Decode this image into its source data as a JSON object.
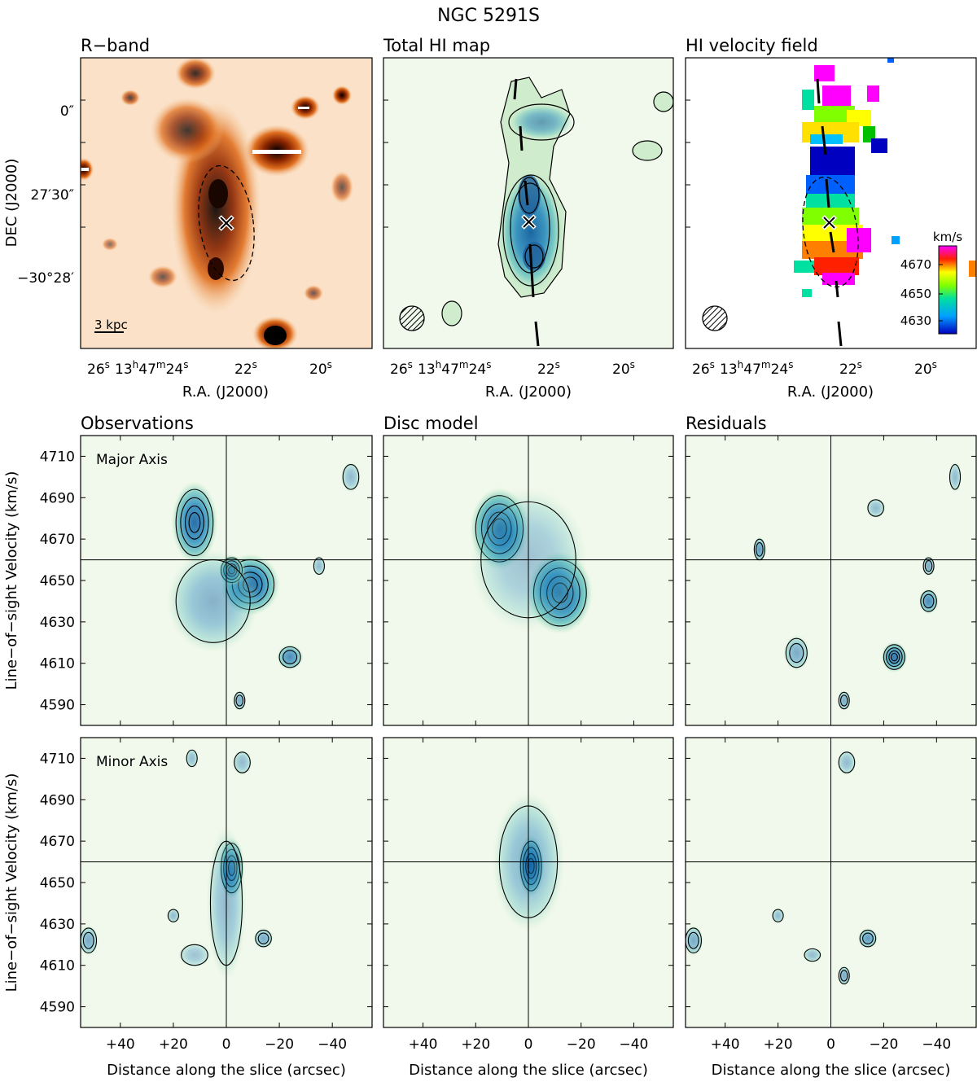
{
  "title": "NGC 5291S",
  "top_row": {
    "panels": [
      {
        "title": "R−band"
      },
      {
        "title": "Total HI map"
      },
      {
        "title": "HI velocity field"
      }
    ],
    "ra_ticks": [
      {
        "h": "26",
        "hs": "s"
      },
      {
        "h": "13",
        "hs": "h",
        "m": "47",
        "ms": "m",
        "s": "24",
        "ss": "s",
        "full": true
      },
      {
        "h": "22",
        "hs": "s"
      },
      {
        "h": "20",
        "hs": "s"
      }
    ],
    "dec_ticks": [
      "0″",
      "27′30″",
      "−30°28′"
    ],
    "xlabel": "R.A. (J2000)",
    "ylabel": "DEC (J2000)",
    "scalebar_label": "3 kpc",
    "colorbar": {
      "unit": "km/s",
      "ticks": [
        4670,
        4650,
        4630
      ]
    }
  },
  "chart_data": [
    {
      "type": "heatmap",
      "name": "Observations",
      "slice": "Major Axis",
      "xlabel": "Distance along the slice (arcsec)",
      "ylabel": "Line−of−sight Velocity (km/s)",
      "xlim": [
        55,
        -55
      ],
      "ylim": [
        4720,
        4580
      ],
      "xticks": [
        "+40",
        "+20",
        "0",
        "−20",
        "−40"
      ],
      "yticks": [
        4590,
        4610,
        4630,
        4650,
        4670,
        4690,
        4710
      ],
      "blobs": [
        {
          "x": 12,
          "y": 4678,
          "rx": 7,
          "ry": 16,
          "peak": 0.85
        },
        {
          "x": -9,
          "y": 4648,
          "rx": 9,
          "ry": 12,
          "peak": 0.9
        },
        {
          "x": -2,
          "y": 4655,
          "rx": 4,
          "ry": 6,
          "peak": 0.95
        },
        {
          "x": 5,
          "y": 4640,
          "rx": 14,
          "ry": 20,
          "peak": 0.45
        },
        {
          "x": -24,
          "y": 4613,
          "rx": 4,
          "ry": 5,
          "peak": 0.7
        },
        {
          "x": -5,
          "y": 4592,
          "rx": 2,
          "ry": 4,
          "peak": 0.5
        },
        {
          "x": -35,
          "y": 4657,
          "rx": 2,
          "ry": 4,
          "peak": 0.4
        },
        {
          "x": -47,
          "y": 4700,
          "rx": 3,
          "ry": 6,
          "peak": 0.4
        }
      ]
    },
    {
      "type": "heatmap",
      "name": "Disc model",
      "slice": "Major Axis",
      "xlabel": "Distance along the slice (arcsec)",
      "ylabel": "Line−of−sight Velocity (km/s)",
      "xlim": [
        55,
        -55
      ],
      "ylim": [
        4720,
        4580
      ],
      "xticks": [
        "+40",
        "+20",
        "0",
        "−20",
        "−40"
      ],
      "yticks": [
        4590,
        4610,
        4630,
        4650,
        4670,
        4690,
        4710
      ],
      "blobs": [
        {
          "x": 11,
          "y": 4675,
          "rx": 9,
          "ry": 16,
          "peak": 0.95
        },
        {
          "x": -12,
          "y": 4644,
          "rx": 10,
          "ry": 16,
          "peak": 0.95
        },
        {
          "x": 0,
          "y": 4660,
          "rx": 18,
          "ry": 28,
          "peak": 0.35
        }
      ]
    },
    {
      "type": "heatmap",
      "name": "Residuals",
      "slice": "Major Axis",
      "xlabel": "Distance along the slice (arcsec)",
      "ylabel": "Line−of−sight Velocity (km/s)",
      "xlim": [
        55,
        -55
      ],
      "ylim": [
        4720,
        4580
      ],
      "xticks": [
        "+40",
        "+20",
        "0",
        "−20",
        "−40"
      ],
      "yticks": [
        4590,
        4610,
        4630,
        4650,
        4670,
        4690,
        4710
      ],
      "blobs": [
        {
          "x": -24,
          "y": 4613,
          "rx": 4,
          "ry": 6,
          "peak": 0.8
        },
        {
          "x": -37,
          "y": 4640,
          "rx": 3,
          "ry": 5,
          "peak": 0.7
        },
        {
          "x": -37,
          "y": 4657,
          "rx": 2,
          "ry": 4,
          "peak": 0.5
        },
        {
          "x": 13,
          "y": 4615,
          "rx": 4,
          "ry": 7,
          "peak": 0.5
        },
        {
          "x": 27,
          "y": 4665,
          "rx": 2,
          "ry": 5,
          "peak": 0.6
        },
        {
          "x": -5,
          "y": 4592,
          "rx": 2,
          "ry": 4,
          "peak": 0.5
        },
        {
          "x": -17,
          "y": 4685,
          "rx": 3,
          "ry": 4,
          "peak": 0.4
        },
        {
          "x": -47,
          "y": 4700,
          "rx": 2,
          "ry": 6,
          "peak": 0.4
        }
      ]
    },
    {
      "type": "heatmap",
      "name": "Observations",
      "slice": "Minor Axis",
      "xlabel": "Distance along the slice (arcsec)",
      "ylabel": "Line−of−sight Velocity (km/s)",
      "xlim": [
        55,
        -55
      ],
      "ylim": [
        4720,
        4580
      ],
      "xticks": [
        "+40",
        "+20",
        "0",
        "−20",
        "−40"
      ],
      "yticks": [
        4590,
        4610,
        4630,
        4650,
        4670,
        4690,
        4710
      ],
      "blobs": [
        {
          "x": -2,
          "y": 4657,
          "rx": 4,
          "ry": 12,
          "peak": 0.85
        },
        {
          "x": 0,
          "y": 4640,
          "rx": 6,
          "ry": 30,
          "peak": 0.4
        },
        {
          "x": -14,
          "y": 4623,
          "rx": 3,
          "ry": 4,
          "peak": 0.5
        },
        {
          "x": 52,
          "y": 4622,
          "rx": 3,
          "ry": 6,
          "peak": 0.5
        },
        {
          "x": 20,
          "y": 4634,
          "rx": 2,
          "ry": 3,
          "peak": 0.4
        },
        {
          "x": 12,
          "y": 4615,
          "rx": 5,
          "ry": 5,
          "peak": 0.35
        },
        {
          "x": 13,
          "y": 4710,
          "rx": 2,
          "ry": 4,
          "peak": 0.4
        },
        {
          "x": -6,
          "y": 4708,
          "rx": 3,
          "ry": 5,
          "peak": 0.4
        }
      ]
    },
    {
      "type": "heatmap",
      "name": "Disc model",
      "slice": "Minor Axis",
      "xlabel": "Distance along the slice (arcsec)",
      "ylabel": "Line−of−sight Velocity (km/s)",
      "xlim": [
        55,
        -55
      ],
      "ylim": [
        4720,
        4580
      ],
      "xticks": [
        "+40",
        "+20",
        "0",
        "−20",
        "−40"
      ],
      "yticks": [
        4590,
        4610,
        4630,
        4650,
        4670,
        4690,
        4710
      ],
      "blobs": [
        {
          "x": -1,
          "y": 4658,
          "rx": 4,
          "ry": 12,
          "peak": 0.9
        },
        {
          "x": 0,
          "y": 4660,
          "rx": 11,
          "ry": 27,
          "peak": 0.45
        }
      ]
    },
    {
      "type": "heatmap",
      "name": "Residuals",
      "slice": "Minor Axis",
      "xlabel": "Distance along the slice (arcsec)",
      "ylabel": "Line−of−sight Velocity (km/s)",
      "xlim": [
        55,
        -55
      ],
      "ylim": [
        4720,
        4580
      ],
      "xticks": [
        "+40",
        "+20",
        "0",
        "−20",
        "−40"
      ],
      "yticks": [
        4590,
        4610,
        4630,
        4650,
        4670,
        4690,
        4710
      ],
      "blobs": [
        {
          "x": -14,
          "y": 4623,
          "rx": 3,
          "ry": 4,
          "peak": 0.6
        },
        {
          "x": -5,
          "y": 4605,
          "rx": 2,
          "ry": 4,
          "peak": 0.5
        },
        {
          "x": 52,
          "y": 4622,
          "rx": 3,
          "ry": 6,
          "peak": 0.5
        },
        {
          "x": 20,
          "y": 4634,
          "rx": 2,
          "ry": 3,
          "peak": 0.4
        },
        {
          "x": 7,
          "y": 4615,
          "rx": 3,
          "ry": 3,
          "peak": 0.4
        },
        {
          "x": -6,
          "y": 4708,
          "rx": 3,
          "ry": 5,
          "peak": 0.4
        }
      ]
    }
  ]
}
